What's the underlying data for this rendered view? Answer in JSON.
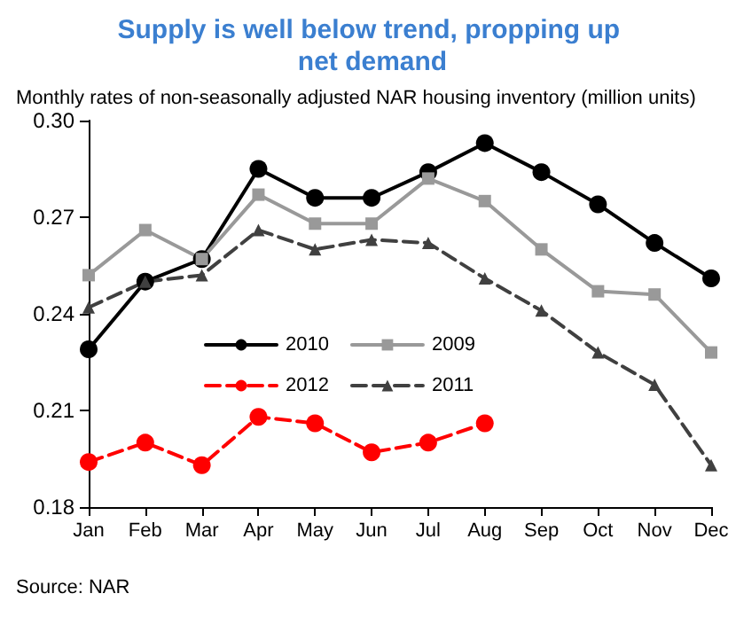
{
  "chart_data": {
    "type": "line",
    "title": "Supply is well below trend, propping up net demand",
    "subtitle": "Monthly rates of non-seasonally adjusted NAR housing inventory (million units)",
    "categories": [
      "Jan",
      "Feb",
      "Mar",
      "Apr",
      "May",
      "Jun",
      "Jul",
      "Aug",
      "Sep",
      "Oct",
      "Nov",
      "Dec"
    ],
    "series": [
      {
        "name": "2010",
        "color": "#000000",
        "marker": "circle",
        "line_style": "solid",
        "values": [
          0.229,
          0.25,
          0.257,
          0.285,
          0.276,
          0.276,
          0.284,
          0.293,
          0.284,
          0.274,
          0.262,
          0.251
        ]
      },
      {
        "name": "2009",
        "color": "#999999",
        "marker": "square",
        "line_style": "solid",
        "values": [
          0.252,
          0.266,
          0.257,
          0.277,
          0.268,
          0.268,
          0.282,
          0.275,
          0.26,
          0.247,
          0.246,
          0.228
        ]
      },
      {
        "name": "2012",
        "color": "#ff0000",
        "marker": "circle",
        "line_style": "dashed",
        "values": [
          0.194,
          0.2,
          0.193,
          0.208,
          0.206,
          0.197,
          0.2,
          0.206,
          null,
          null,
          null,
          null
        ]
      },
      {
        "name": "2011",
        "color": "#404040",
        "marker": "triangle",
        "line_style": "dashed",
        "values": [
          0.242,
          0.25,
          0.252,
          0.266,
          0.26,
          0.263,
          0.262,
          0.251,
          0.241,
          0.228,
          0.218,
          0.193
        ]
      }
    ],
    "ylim": [
      0.18,
      0.3
    ],
    "yticks": [
      0.18,
      0.21,
      0.24,
      0.27,
      {
        "value": 0.3,
        "label": "0.30"
      }
    ],
    "grid": false,
    "legend": "center left",
    "annotations": [
      "Source: NAR"
    ]
  }
}
